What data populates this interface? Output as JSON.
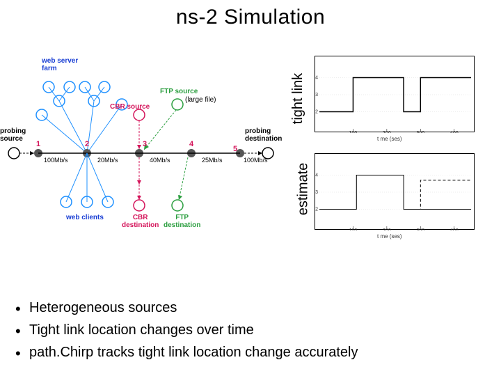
{
  "title": "ns-2 Simulation",
  "topology": {
    "labels": {
      "web_server_farm": "web server\nfarm",
      "probing_source": "probing\nsource",
      "probing_destination": "probing\ndestination",
      "cbr_source": "CBR source",
      "ftp_source": "FTP source",
      "ftp_source_note": "(large file)",
      "cbr_destination": "CBR\ndestination",
      "ftp_destination": "FTP\ndestination",
      "web_clients": "web clients"
    },
    "node_numbers": [
      "1",
      "2",
      "3",
      "4",
      "5"
    ],
    "bandwidths": [
      "100Mb/s",
      "20Mb/s",
      "40Mb/s",
      "25Mb/s",
      "100Mb/s"
    ],
    "colors": {
      "web": "#1a3fd4",
      "web_circle_stroke": "#1e90ff",
      "cbr": "#d4145a",
      "ftp": "#2b9e3f",
      "backbone": "#555555",
      "probing_text": "#000000"
    }
  },
  "charts": {
    "tight_link": {
      "ylabel": "tight link",
      "xlabel": "t me (ses)",
      "xlim": [
        0,
        450
      ],
      "ylim": [
        1,
        5
      ],
      "xticks": [
        100,
        200,
        300,
        400
      ],
      "yticks": [
        2,
        3,
        4
      ],
      "series": {
        "type": "step",
        "points": [
          [
            0,
            2
          ],
          [
            100,
            2
          ],
          [
            100,
            4
          ],
          [
            250,
            4
          ],
          [
            250,
            2
          ],
          [
            300,
            2
          ],
          [
            300,
            4
          ],
          [
            450,
            4
          ]
        ],
        "color": "#000000",
        "width": 1.5
      },
      "grid_color": "#dddddd"
    },
    "estimate": {
      "ylabel": "estimate",
      "xlabel": "t me (ses)",
      "xlim": [
        0,
        450
      ],
      "ylim": [
        1,
        5
      ],
      "xticks": [
        100,
        200,
        300,
        400
      ],
      "yticks": [
        2,
        3,
        4
      ],
      "series_solid": {
        "type": "step",
        "points": [
          [
            0,
            2
          ],
          [
            110,
            2
          ],
          [
            110,
            4
          ],
          [
            250,
            4
          ],
          [
            250,
            2
          ],
          [
            450,
            2
          ]
        ],
        "color": "#000000",
        "width": 1,
        "dash": "none"
      },
      "series_dash": {
        "type": "step",
        "points": [
          [
            250,
            2
          ],
          [
            300,
            2
          ],
          [
            300,
            3.7
          ],
          [
            450,
            3.7
          ]
        ],
        "color": "#000000",
        "width": 1,
        "dash": "4,3"
      },
      "grid_color": "#dddddd"
    }
  },
  "bullets": [
    "Heterogeneous sources",
    "Tight link location changes over time",
    "path.Chirp tracks tight link location change accurately"
  ]
}
